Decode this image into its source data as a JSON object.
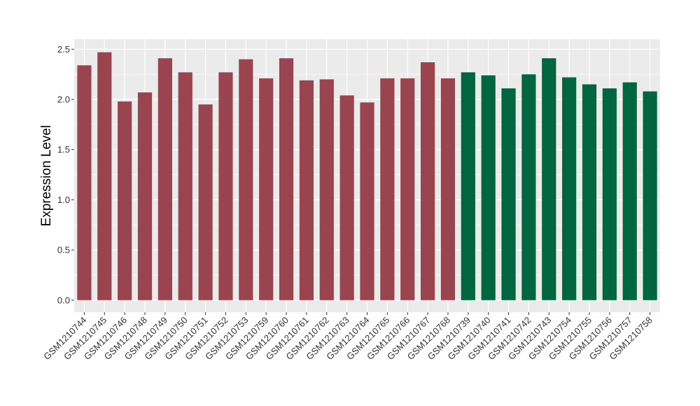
{
  "chart_data": {
    "type": "bar",
    "title": "",
    "xlabel": "",
    "ylabel": "Expression Level",
    "ylim": [
      -0.12,
      2.6
    ],
    "yticks": [
      0.0,
      0.5,
      1.0,
      1.5,
      2.0,
      2.5
    ],
    "ytick_labels": [
      "0.0",
      "0.5",
      "1.0",
      "1.5",
      "2.0",
      "2.5"
    ],
    "grid": true,
    "legend": "none",
    "colors": {
      "group1": "#9a4450",
      "group2": "#006642",
      "panel": "#ebebeb",
      "gridline": "#ffffff"
    },
    "categories": [
      "GSM1210744",
      "GSM1210745",
      "GSM1210746",
      "GSM1210748",
      "GSM1210749",
      "GSM1210750",
      "GSM1210751",
      "GSM1210752",
      "GSM1210753",
      "GSM1210759",
      "GSM1210760",
      "GSM1210761",
      "GSM1210762",
      "GSM1210763",
      "GSM1210764",
      "GSM1210765",
      "GSM1210766",
      "GSM1210767",
      "GSM1210768",
      "GSM1210739",
      "GSM1210740",
      "GSM1210741",
      "GSM1210742",
      "GSM1210743",
      "GSM1210754",
      "GSM1210755",
      "GSM1210756",
      "GSM1210757",
      "GSM1210758"
    ],
    "values": [
      2.34,
      2.47,
      1.98,
      2.07,
      2.41,
      2.27,
      1.95,
      2.27,
      2.4,
      2.21,
      2.41,
      2.19,
      2.2,
      2.04,
      1.97,
      2.21,
      2.21,
      2.37,
      2.21,
      2.27,
      2.24,
      2.11,
      2.25,
      2.41,
      2.22,
      2.15,
      2.11,
      2.17,
      2.08
    ],
    "groups": [
      "group1",
      "group1",
      "group1",
      "group1",
      "group1",
      "group1",
      "group1",
      "group1",
      "group1",
      "group1",
      "group1",
      "group1",
      "group1",
      "group1",
      "group1",
      "group1",
      "group1",
      "group1",
      "group1",
      "group2",
      "group2",
      "group2",
      "group2",
      "group2",
      "group2",
      "group2",
      "group2",
      "group2",
      "group2"
    ]
  }
}
